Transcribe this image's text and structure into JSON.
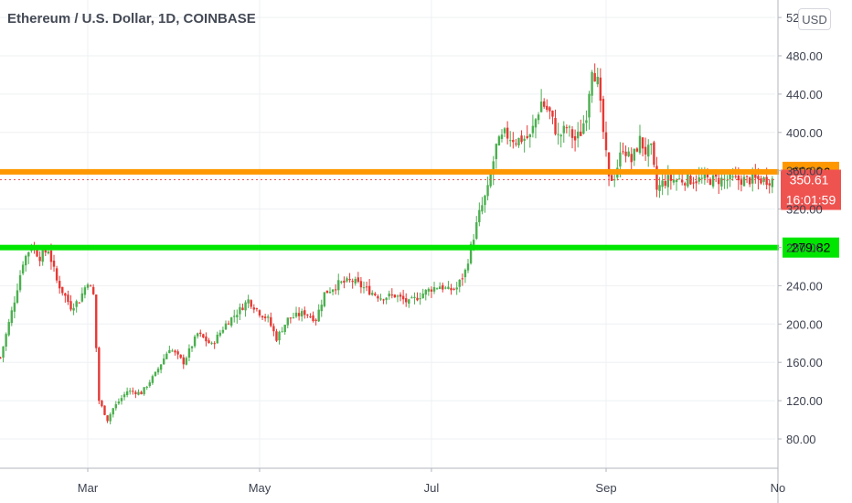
{
  "chart": {
    "title": "Ethereum / U.S. Dollar, 1D, COINBASE",
    "currency_button": "USD"
  },
  "chart_data": {
    "type": "candlestick",
    "title": "Ethereum / U.S. Dollar, 1D, COINBASE",
    "ylim": [
      48,
      524
    ],
    "y_ticks": [
      80,
      120,
      160,
      200,
      240,
      280,
      320,
      360,
      400,
      440,
      480,
      520
    ],
    "y_tick_labels": [
      "80.00",
      "120.00",
      "160.00",
      "",
      "",
      "",
      "",
      "",
      "",
      "",
      "",
      ""
    ],
    "x_ticks": [
      {
        "label": "Mar",
        "day": 41
      },
      {
        "label": "May",
        "day": 102
      },
      {
        "label": "Jul",
        "day": 163
      },
      {
        "label": "Sep",
        "day": 225
      },
      {
        "label": "No",
        "day": 286
      }
    ],
    "x_range_days": [
      10,
      284
    ],
    "candle_series": {
      "up_color": "#26a69a",
      "down_color": "#ef5350",
      "green_candle_color": "#4caf50",
      "red_candle_color": "#e53935"
    },
    "anchors": [
      [
        10,
        165
      ],
      [
        15,
        225
      ],
      [
        18,
        265
      ],
      [
        21,
        282
      ],
      [
        24,
        270
      ],
      [
        27,
        278
      ],
      [
        30,
        245
      ],
      [
        35,
        218
      ],
      [
        38,
        225
      ],
      [
        41,
        245
      ],
      [
        43,
        230
      ],
      [
        45,
        120
      ],
      [
        48,
        100
      ],
      [
        50,
        112
      ],
      [
        55,
        130
      ],
      [
        60,
        128
      ],
      [
        65,
        148
      ],
      [
        70,
        175
      ],
      [
        75,
        160
      ],
      [
        80,
        190
      ],
      [
        85,
        178
      ],
      [
        90,
        200
      ],
      [
        95,
        215
      ],
      [
        98,
        225
      ],
      [
        102,
        212
      ],
      [
        105,
        205
      ],
      [
        108,
        185
      ],
      [
        112,
        205
      ],
      [
        118,
        212
      ],
      [
        122,
        205
      ],
      [
        125,
        232
      ],
      [
        130,
        242
      ],
      [
        135,
        245
      ],
      [
        140,
        236
      ],
      [
        145,
        228
      ],
      [
        150,
        230
      ],
      [
        155,
        222
      ],
      [
        160,
        232
      ],
      [
        163,
        237
      ],
      [
        166,
        240
      ],
      [
        169,
        235
      ],
      [
        172,
        238
      ],
      [
        175,
        255
      ],
      [
        177,
        280
      ],
      [
        180,
        315
      ],
      [
        183,
        340
      ],
      [
        186,
        385
      ],
      [
        189,
        398
      ],
      [
        193,
        392
      ],
      [
        198,
        395
      ],
      [
        202,
        432
      ],
      [
        205,
        420
      ],
      [
        208,
        395
      ],
      [
        211,
        405
      ],
      [
        214,
        392
      ],
      [
        216,
        400
      ],
      [
        218,
        420
      ],
      [
        220,
        470
      ],
      [
        222,
        452
      ],
      [
        224,
        400
      ],
      [
        226,
        350
      ],
      [
        228,
        355
      ],
      [
        231,
        385
      ],
      [
        234,
        370
      ],
      [
        237,
        392
      ],
      [
        239,
        380
      ],
      [
        241,
        382
      ],
      [
        243,
        340
      ],
      [
        245,
        347
      ],
      [
        247,
        350.61
      ]
    ],
    "horizontal_lines": [
      {
        "value": 358.86,
        "label": "358.86",
        "color": "#ff9800"
      },
      {
        "value": 279.82,
        "label": "279.82",
        "color": "#00e600"
      }
    ],
    "last_price": {
      "value": 350.61,
      "label": "350.61",
      "countdown": "16:01:59",
      "color": "#ef5350"
    }
  }
}
